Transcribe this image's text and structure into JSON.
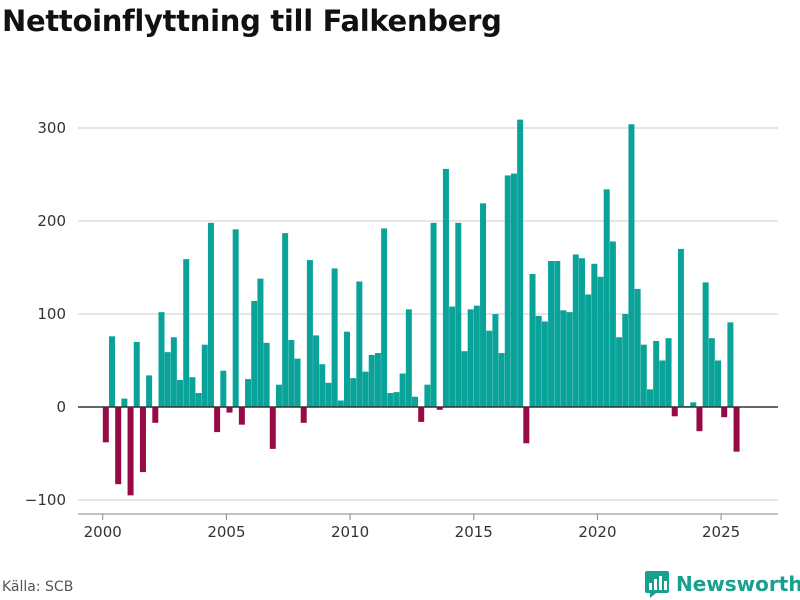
{
  "title": "Nettoinflyttning till Falkenberg",
  "source": "Källa: SCB",
  "brand": "Newsworthy",
  "colors": {
    "positive": "#0aa399",
    "negative": "#960a45",
    "grid": "#dddddd",
    "zero": "#333333"
  },
  "chart_data": {
    "type": "bar",
    "title": "Nettoinflyttning till Falkenberg",
    "xlabel": "",
    "ylabel": "",
    "ylim": [
      -100,
      310
    ],
    "yticks": [
      -100,
      0,
      100,
      200,
      300
    ],
    "ytick_labels": [
      "−100",
      "0",
      "100",
      "200",
      "300"
    ],
    "xticks": [
      2000,
      2005,
      2010,
      2015,
      2020,
      2025
    ],
    "xtick_labels": [
      "2000",
      "2005",
      "2010",
      "2015",
      "2020",
      "2025"
    ],
    "xlim": [
      1999.0,
      2027.3
    ],
    "start": 2000.125,
    "step": 0.25,
    "series": [
      {
        "name": "Nettoinflyttning",
        "values": [
          -38,
          76,
          -83,
          9,
          -95,
          70,
          -70,
          34,
          -17,
          102,
          59,
          75,
          29,
          159,
          32,
          15,
          67,
          198,
          -27,
          39,
          -6,
          191,
          -19,
          30,
          114,
          138,
          69,
          -45,
          24,
          187,
          72,
          52,
          -17,
          158,
          77,
          46,
          26,
          149,
          7,
          81,
          31,
          135,
          38,
          56,
          58,
          192,
          15,
          16,
          36,
          105,
          11,
          -16,
          24,
          198,
          -3,
          256,
          108,
          198,
          60,
          105,
          109,
          219,
          82,
          100,
          58,
          249,
          251,
          309,
          -39,
          143,
          98,
          92,
          157,
          157,
          104,
          102,
          164,
          160,
          121,
          154,
          140,
          234,
          178,
          75,
          100,
          304,
          127,
          67,
          19,
          71,
          50,
          74,
          -10,
          170,
          1,
          5,
          -26,
          134,
          74,
          50,
          -11,
          91,
          -48
        ]
      }
    ]
  }
}
